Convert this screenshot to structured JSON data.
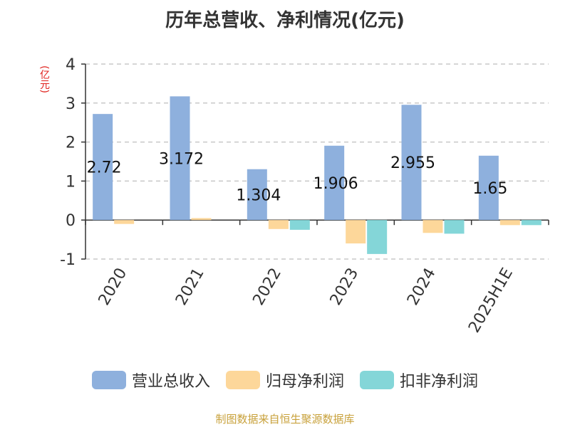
{
  "chart_data": {
    "type": "bar",
    "title": "历年总营收、净利情况(亿元)",
    "y_unit": "(亿元)",
    "categories": [
      "2020",
      "2021",
      "2022",
      "2023",
      "2024",
      "2025H1E"
    ],
    "series": [
      {
        "name": "营业总收入",
        "color": "#8eb0dd",
        "values": [
          2.72,
          3.172,
          1.304,
          1.906,
          2.955,
          1.65
        ],
        "data_labels": [
          "2.72",
          "3.172",
          "1.304",
          "1.906",
          "2.955",
          "1.65"
        ]
      },
      {
        "name": "归母净利润",
        "color": "#fdd79a",
        "values": [
          -0.1,
          0.05,
          -0.23,
          -0.6,
          -0.33,
          -0.13
        ]
      },
      {
        "name": "扣非净利润",
        "color": "#84d6d8",
        "values": [
          null,
          null,
          -0.25,
          -0.87,
          -0.35,
          -0.13
        ]
      }
    ],
    "ylim": [
      -1,
      4
    ],
    "yticks": [
      "-1",
      "0",
      "1",
      "2",
      "3",
      "4"
    ],
    "grid": true,
    "legend_position": "bottom"
  },
  "source_note": "制图数据来自恒生聚源数据库"
}
